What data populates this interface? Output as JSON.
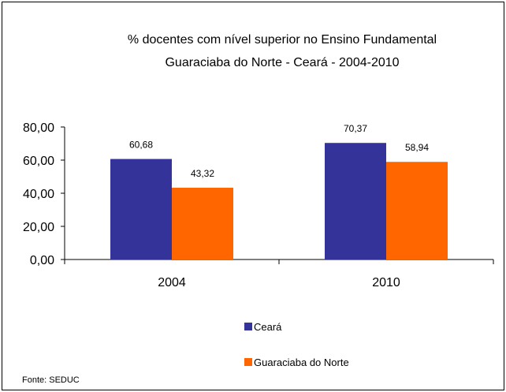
{
  "chart_data": {
    "type": "bar",
    "title": [
      "% docentes com nível  superior no Ensino Fundamental",
      "Guaraciaba do Norte -  Ceará - 2004-2010"
    ],
    "categories": [
      "2004",
      "2010"
    ],
    "series": [
      {
        "name": "Ceará",
        "color": "#333399",
        "values": [
          60.68,
          70.37
        ],
        "labels": [
          "60,68",
          "70,37"
        ]
      },
      {
        "name": "Guaraciaba do Norte",
        "color": "#FF6600",
        "values": [
          43.32,
          58.94
        ],
        "labels": [
          "43,32",
          "58,94"
        ]
      }
    ],
    "ylim": [
      0,
      80
    ],
    "yticks": [
      0,
      20,
      40,
      60,
      80
    ],
    "ytick_labels": [
      "0,00",
      "20,00",
      "40,00",
      "60,00",
      "80,00"
    ],
    "grid": false,
    "legend_position": "bottom"
  },
  "source": "Fonte: SEDUC"
}
